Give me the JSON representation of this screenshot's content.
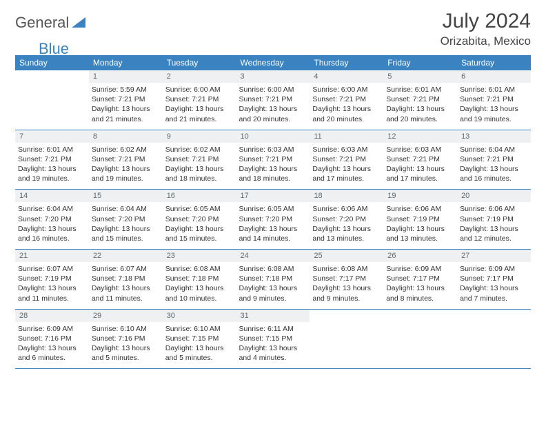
{
  "brand": {
    "word1": "General",
    "word2": "Blue"
  },
  "title": "July 2024",
  "location": "Orizabita, Mexico",
  "headers": [
    "Sunday",
    "Monday",
    "Tuesday",
    "Wednesday",
    "Thursday",
    "Friday",
    "Saturday"
  ],
  "colors": {
    "header_bg": "#3b83c0",
    "header_fg": "#ffffff",
    "daynum_bg": "#eef0f1",
    "daynum_fg": "#5f6a72",
    "row_border": "#3b83c0",
    "text_color": "#333333"
  },
  "weeks": [
    [
      {
        "n": "",
        "sr": "",
        "ss": "",
        "dl": ""
      },
      {
        "n": "1",
        "sr": "5:59 AM",
        "ss": "7:21 PM",
        "dl": "13 hours and 21 minutes."
      },
      {
        "n": "2",
        "sr": "6:00 AM",
        "ss": "7:21 PM",
        "dl": "13 hours and 21 minutes."
      },
      {
        "n": "3",
        "sr": "6:00 AM",
        "ss": "7:21 PM",
        "dl": "13 hours and 20 minutes."
      },
      {
        "n": "4",
        "sr": "6:00 AM",
        "ss": "7:21 PM",
        "dl": "13 hours and 20 minutes."
      },
      {
        "n": "5",
        "sr": "6:01 AM",
        "ss": "7:21 PM",
        "dl": "13 hours and 20 minutes."
      },
      {
        "n": "6",
        "sr": "6:01 AM",
        "ss": "7:21 PM",
        "dl": "13 hours and 19 minutes."
      }
    ],
    [
      {
        "n": "7",
        "sr": "6:01 AM",
        "ss": "7:21 PM",
        "dl": "13 hours and 19 minutes."
      },
      {
        "n": "8",
        "sr": "6:02 AM",
        "ss": "7:21 PM",
        "dl": "13 hours and 19 minutes."
      },
      {
        "n": "9",
        "sr": "6:02 AM",
        "ss": "7:21 PM",
        "dl": "13 hours and 18 minutes."
      },
      {
        "n": "10",
        "sr": "6:03 AM",
        "ss": "7:21 PM",
        "dl": "13 hours and 18 minutes."
      },
      {
        "n": "11",
        "sr": "6:03 AM",
        "ss": "7:21 PM",
        "dl": "13 hours and 17 minutes."
      },
      {
        "n": "12",
        "sr": "6:03 AM",
        "ss": "7:21 PM",
        "dl": "13 hours and 17 minutes."
      },
      {
        "n": "13",
        "sr": "6:04 AM",
        "ss": "7:21 PM",
        "dl": "13 hours and 16 minutes."
      }
    ],
    [
      {
        "n": "14",
        "sr": "6:04 AM",
        "ss": "7:20 PM",
        "dl": "13 hours and 16 minutes."
      },
      {
        "n": "15",
        "sr": "6:04 AM",
        "ss": "7:20 PM",
        "dl": "13 hours and 15 minutes."
      },
      {
        "n": "16",
        "sr": "6:05 AM",
        "ss": "7:20 PM",
        "dl": "13 hours and 15 minutes."
      },
      {
        "n": "17",
        "sr": "6:05 AM",
        "ss": "7:20 PM",
        "dl": "13 hours and 14 minutes."
      },
      {
        "n": "18",
        "sr": "6:06 AM",
        "ss": "7:20 PM",
        "dl": "13 hours and 13 minutes."
      },
      {
        "n": "19",
        "sr": "6:06 AM",
        "ss": "7:19 PM",
        "dl": "13 hours and 13 minutes."
      },
      {
        "n": "20",
        "sr": "6:06 AM",
        "ss": "7:19 PM",
        "dl": "13 hours and 12 minutes."
      }
    ],
    [
      {
        "n": "21",
        "sr": "6:07 AM",
        "ss": "7:19 PM",
        "dl": "13 hours and 11 minutes."
      },
      {
        "n": "22",
        "sr": "6:07 AM",
        "ss": "7:18 PM",
        "dl": "13 hours and 11 minutes."
      },
      {
        "n": "23",
        "sr": "6:08 AM",
        "ss": "7:18 PM",
        "dl": "13 hours and 10 minutes."
      },
      {
        "n": "24",
        "sr": "6:08 AM",
        "ss": "7:18 PM",
        "dl": "13 hours and 9 minutes."
      },
      {
        "n": "25",
        "sr": "6:08 AM",
        "ss": "7:17 PM",
        "dl": "13 hours and 9 minutes."
      },
      {
        "n": "26",
        "sr": "6:09 AM",
        "ss": "7:17 PM",
        "dl": "13 hours and 8 minutes."
      },
      {
        "n": "27",
        "sr": "6:09 AM",
        "ss": "7:17 PM",
        "dl": "13 hours and 7 minutes."
      }
    ],
    [
      {
        "n": "28",
        "sr": "6:09 AM",
        "ss": "7:16 PM",
        "dl": "13 hours and 6 minutes."
      },
      {
        "n": "29",
        "sr": "6:10 AM",
        "ss": "7:16 PM",
        "dl": "13 hours and 5 minutes."
      },
      {
        "n": "30",
        "sr": "6:10 AM",
        "ss": "7:15 PM",
        "dl": "13 hours and 5 minutes."
      },
      {
        "n": "31",
        "sr": "6:11 AM",
        "ss": "7:15 PM",
        "dl": "13 hours and 4 minutes."
      },
      {
        "n": "",
        "sr": "",
        "ss": "",
        "dl": ""
      },
      {
        "n": "",
        "sr": "",
        "ss": "",
        "dl": ""
      },
      {
        "n": "",
        "sr": "",
        "ss": "",
        "dl": ""
      }
    ]
  ],
  "labels": {
    "sunrise": "Sunrise:",
    "sunset": "Sunset:",
    "daylight": "Daylight:"
  }
}
